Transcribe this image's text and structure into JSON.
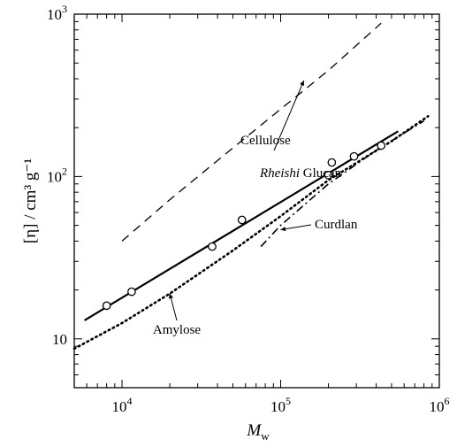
{
  "chart_data": {
    "type": "line",
    "xscale": "log",
    "yscale": "log",
    "xlim": [
      5000,
      1000000
    ],
    "ylim": [
      5,
      1000
    ],
    "xlabel": "M",
    "xlabel_sub": "w",
    "ylabel": "[η] / cm³ g⁻¹",
    "grid": false,
    "x_tick_labels": [
      {
        "value": 10000,
        "label": "10",
        "exp": "4"
      },
      {
        "value": 100000,
        "label": "10",
        "exp": "5"
      },
      {
        "value": 1000000,
        "label": "10",
        "exp": "6"
      }
    ],
    "y_tick_labels": [
      {
        "value": 10,
        "label": "10",
        "exp": ""
      },
      {
        "value": 100,
        "label": "10",
        "exp": "2"
      },
      {
        "value": 1000,
        "label": "10",
        "exp": "3"
      }
    ],
    "series": [
      {
        "name": "Rheishi Glucan",
        "name_italic": "Rheishi",
        "name_rest": " Glucan",
        "style": "solid",
        "x": [
          5800,
          550000
        ],
        "y": [
          13,
          190
        ]
      },
      {
        "name": "Cellulose",
        "style": "dashed",
        "x": [
          10000,
          20000,
          50000,
          100000,
          200000,
          430000
        ],
        "y": [
          40,
          72,
          150,
          260,
          450,
          880
        ]
      },
      {
        "name": "Amylose",
        "style": "dotted",
        "x": [
          5000,
          10000,
          20000,
          50000,
          100000,
          200000,
          500000,
          850000
        ],
        "y": [
          8.7,
          12.5,
          19,
          35,
          57,
          95,
          165,
          235
        ]
      },
      {
        "name": "Curdlan",
        "style": "dashdot",
        "x": [
          75000,
          100000,
          200000,
          400000,
          800000
        ],
        "y": [
          37,
          50,
          90,
          145,
          220
        ]
      }
    ],
    "points": {
      "marker": "open-circle",
      "x": [
        8000,
        11500,
        37000,
        57000,
        200000,
        210000,
        290000,
        430000
      ],
      "y": [
        16,
        19.5,
        37,
        54,
        102,
        122,
        133,
        155
      ]
    },
    "annotations": [
      {
        "text": "Cellulose",
        "series": "Cellulose",
        "arrow_to": [
          140000,
          390
        ]
      },
      {
        "text": "Rheishi Glucan",
        "series": "Rheishi Glucan"
      },
      {
        "text": "Curdlan",
        "series": "Curdlan",
        "arrow_to": [
          100000,
          47
        ]
      },
      {
        "text": "Amylose",
        "series": "Amylose",
        "arrow_to": [
          20000,
          19
        ]
      }
    ]
  }
}
